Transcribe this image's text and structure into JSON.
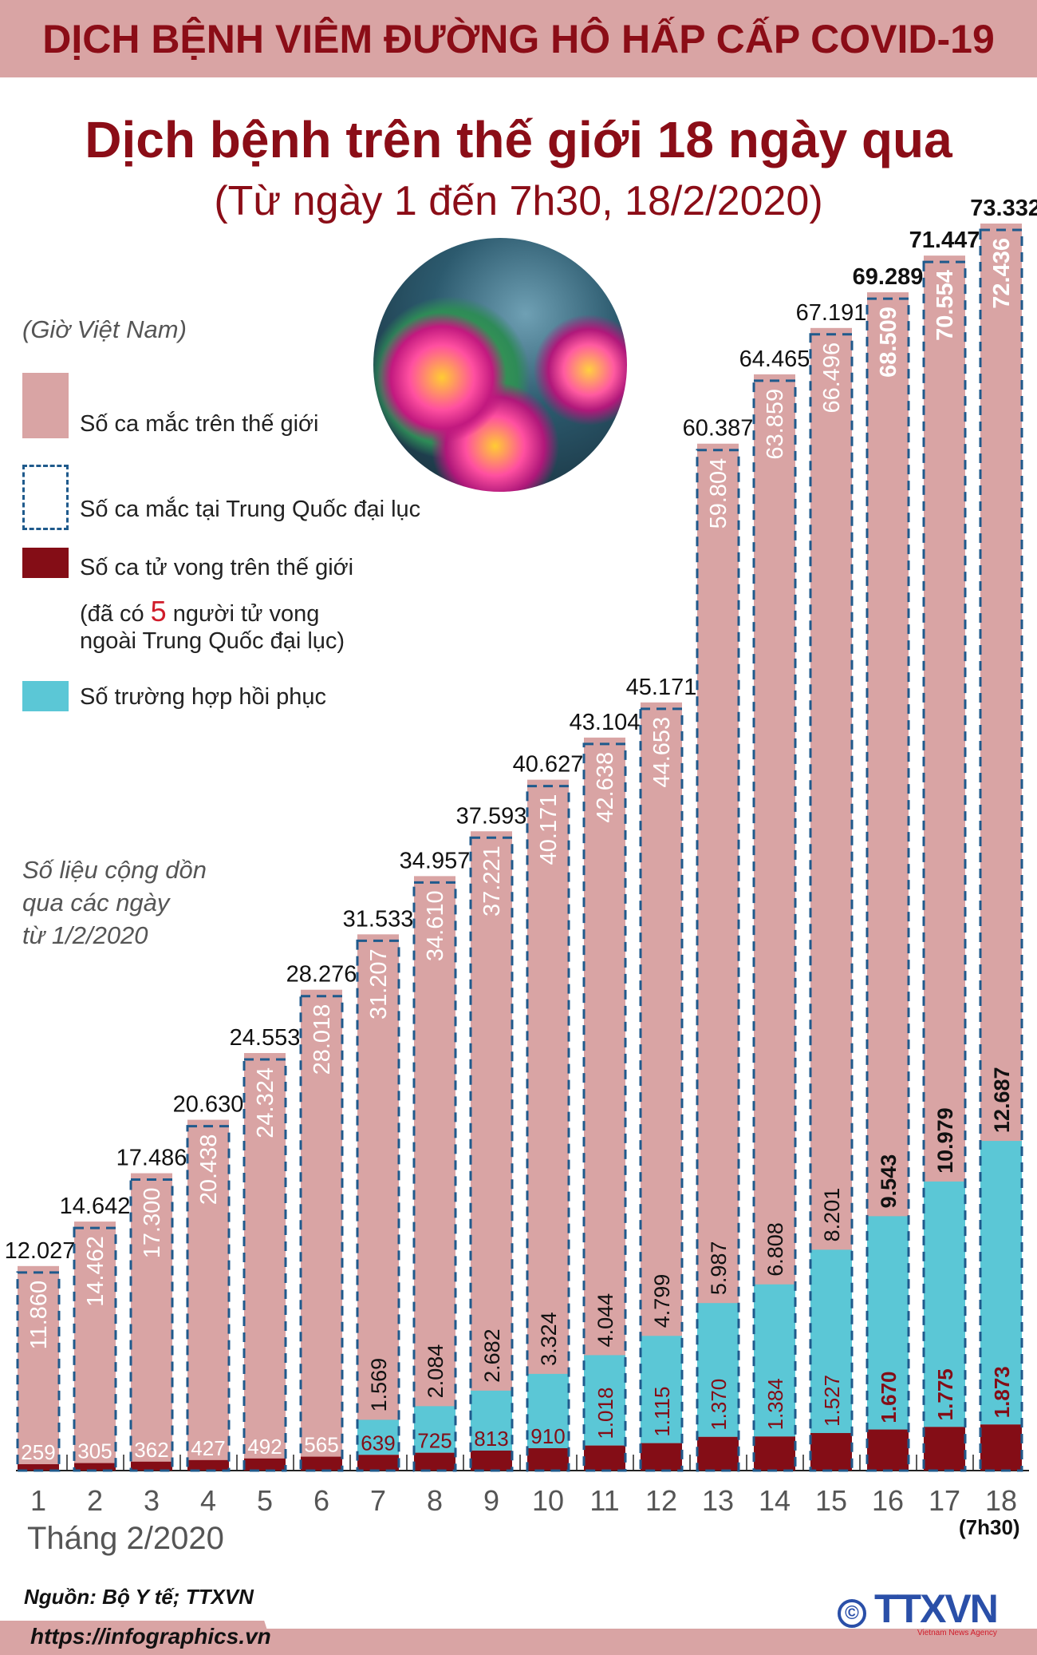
{
  "header": {
    "band": "DỊCH BỆNH VIÊM ĐƯỜNG HÔ HẤP CẤP COVID-19",
    "title": "Dịch bệnh trên thế giới 18 ngày qua",
    "subtitle": "(Từ ngày 1 đến 7h30, 18/2/2020)"
  },
  "legend": {
    "timezone": "(Giờ Việt Nam)",
    "world_cases": "Số ca mắc trên thế giới",
    "china_cases": "Số ca mắc tại Trung Quốc đại lục",
    "deaths": "Số ca tử vong trên thế giới",
    "deaths_note_pre": "(đã có ",
    "deaths_note_num": "5",
    "deaths_note_post": " người tử vong",
    "deaths_note_line2": "ngoài Trung Quốc đại lục)",
    "recovered": "Số trường hợp hồi phục",
    "cumulative_1": "Số liệu cộng dồn",
    "cumulative_2": "qua các ngày",
    "cumulative_3": "từ 1/2/2020"
  },
  "colors": {
    "world": "#d9a4a4",
    "china_border": "#1f5a8c",
    "deaths": "#840d16",
    "recovered": "#5bc7d6",
    "accent": "#8b0d17"
  },
  "chart_data": {
    "type": "bar",
    "xlabel": "Tháng 2/2020",
    "last_day_note": "(7h30)",
    "categories": [
      "1",
      "2",
      "3",
      "4",
      "5",
      "6",
      "7",
      "8",
      "9",
      "10",
      "11",
      "12",
      "13",
      "14",
      "15",
      "16",
      "17",
      "18"
    ],
    "series": [
      {
        "name": "Số ca mắc trên thế giới",
        "values": [
          12027,
          14642,
          17486,
          20630,
          24553,
          28276,
          31533,
          34957,
          37593,
          40627,
          43104,
          45171,
          60387,
          64465,
          67191,
          69289,
          71447,
          73332
        ],
        "labels": [
          "12.027",
          "14.642",
          "17.486",
          "20.630",
          "24.553",
          "28.276",
          "31.533",
          "34.957",
          "37.593",
          "40.627",
          "43.104",
          "45.171",
          "60.387",
          "64.465",
          "67.191",
          "69.289",
          "71.447",
          "73.332"
        ]
      },
      {
        "name": "Số ca mắc tại Trung Quốc đại lục",
        "values": [
          11860,
          14462,
          17300,
          20438,
          24324,
          28018,
          31207,
          34610,
          37221,
          40171,
          42638,
          44653,
          59804,
          63859,
          66496,
          68509,
          70554,
          72436
        ],
        "labels": [
          "11.860",
          "14.462",
          "17.300",
          "20.438",
          "24.324",
          "28.018",
          "31.207",
          "34.610",
          "37.221",
          "40.171",
          "42.638",
          "44.653",
          "59.804",
          "63.859",
          "66.496",
          "68.509",
          "70.554",
          "72.436"
        ]
      },
      {
        "name": "Số ca tử vong trên thế giới",
        "values": [
          259,
          305,
          362,
          427,
          492,
          565,
          639,
          725,
          813,
          910,
          1018,
          1115,
          1370,
          1384,
          1527,
          1670,
          1775,
          1873
        ],
        "labels": [
          "259",
          "305",
          "362",
          "427",
          "492",
          "565",
          "639",
          "725",
          "813",
          "910",
          "1.018",
          "1.115",
          "1.370",
          "1.384",
          "1.527",
          "1.670",
          "1.775",
          "1.873"
        ]
      },
      {
        "name": "Số trường hợp hồi phục",
        "values": [
          null,
          null,
          null,
          null,
          null,
          null,
          1569,
          2084,
          2682,
          3324,
          4044,
          4799,
          5987,
          6808,
          8201,
          9543,
          10979,
          12687
        ],
        "labels": [
          "",
          "",
          "",
          "",
          "",
          "",
          "1.569",
          "2.084",
          "2.682",
          "3.324",
          "4.044",
          "4.799",
          "5.987",
          "6.808",
          "8.201",
          "9.543",
          "10.979",
          "12.687"
        ]
      }
    ]
  },
  "footer": {
    "source": "Nguồn: Bộ Y tế; TTXVN",
    "url": "https://infographics.vn",
    "logo": "TTXVN",
    "logo_sub": "Vietnam News Agency",
    "copyright": "©"
  }
}
